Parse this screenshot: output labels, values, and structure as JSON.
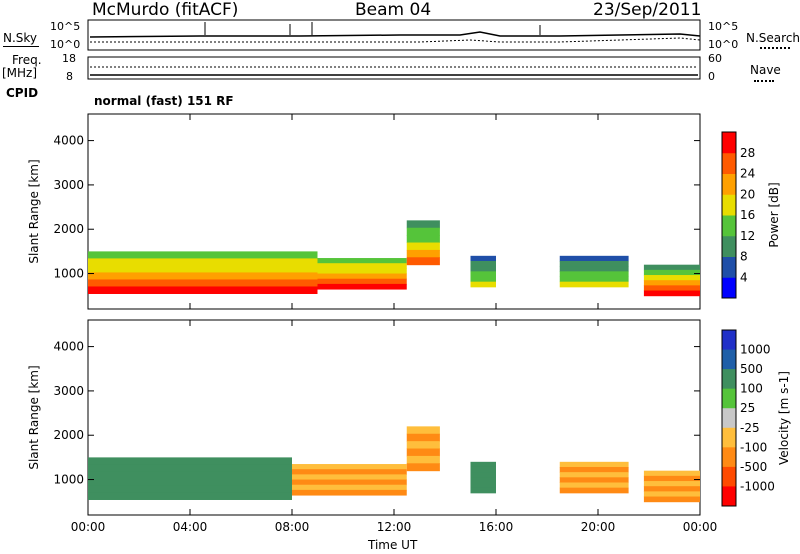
{
  "header": {
    "station": "McMurdo (fitACF)",
    "beam": "Beam 04",
    "date": "23/Sep/2011"
  },
  "summary_panels": {
    "nsky_label": "N.Sky",
    "noise_ticks_left": [
      "10^5",
      "10^0"
    ],
    "noise_ticks_right": [
      "10^5",
      "10^0"
    ],
    "nsearch_label": "N.Search",
    "freq_label": "Freq.",
    "freq_unit": "[MHz]",
    "freq_ticks": [
      "18",
      "8"
    ],
    "nave_ticks": [
      "60",
      "0"
    ],
    "nave_label": "Nave",
    "cpid_label": "CPID",
    "cpid_text": "normal (fast) 151 RF"
  },
  "colors": {
    "power_scale": [
      "#0000ff",
      "#1f4fa8",
      "#3f8f5f",
      "#55c43a",
      "#e8dd00",
      "#ffa000",
      "#ff5a00",
      "#ff0000"
    ],
    "velocity_scale": [
      "#2030c8",
      "#1f5fa8",
      "#3f8f5f",
      "#55c43a",
      "#c8c8c8",
      "#ffbe3c",
      "#ff8a14",
      "#ff4a00",
      "#ff0000"
    ]
  },
  "chart_data": [
    {
      "type": "heatmap",
      "title": "Power",
      "xlabel": "Time UT",
      "ylabel": "Slant Range [km]",
      "xlim": [
        0,
        24
      ],
      "ylim": [
        200,
        4600
      ],
      "x_tick_labels": [
        "00:00",
        "04:00",
        "08:00",
        "12:00",
        "16:00",
        "20:00",
        "00:00"
      ],
      "y_tick_labels": [
        "1000",
        "2000",
        "3000",
        "4000"
      ],
      "colorbar": {
        "label": "Power [dB]",
        "range": [
          0,
          32
        ],
        "tick_labels": [
          "4",
          "8",
          "12",
          "16",
          "20",
          "24",
          "28"
        ]
      },
      "echo_regions": [
        {
          "time_start": 0.0,
          "time_end": 9.0,
          "range_low": 550,
          "range_high": 1500,
          "peak_db": 30
        },
        {
          "time_start": 9.0,
          "time_end": 12.5,
          "range_low": 650,
          "range_high": 1350,
          "peak_db": 30
        },
        {
          "time_start": 12.5,
          "time_end": 13.8,
          "range_low": 1200,
          "range_high": 2200,
          "peak_db": 24
        },
        {
          "time_start": 15.0,
          "time_end": 16.0,
          "range_low": 700,
          "range_high": 1400,
          "peak_db": 16
        },
        {
          "time_start": 18.5,
          "time_end": 21.2,
          "range_low": 700,
          "range_high": 1400,
          "peak_db": 16
        },
        {
          "time_start": 21.8,
          "time_end": 24.0,
          "range_low": 500,
          "range_high": 1200,
          "peak_db": 28
        }
      ]
    },
    {
      "type": "heatmap",
      "title": "Velocity",
      "xlabel": "Time UT",
      "ylabel": "Slant Range [km]",
      "xlim": [
        0,
        24
      ],
      "ylim": [
        200,
        4600
      ],
      "x_tick_labels": [
        "00:00",
        "04:00",
        "08:00",
        "12:00",
        "16:00",
        "20:00",
        "00:00"
      ],
      "y_tick_labels": [
        "1000",
        "2000",
        "3000",
        "4000"
      ],
      "colorbar": {
        "label": "Velocity [m s-1]",
        "tick_labels": [
          "1000",
          "500",
          "100",
          "25",
          "-25",
          "-100",
          "-500",
          "-1000"
        ]
      },
      "echo_regions": [
        {
          "time_start": 0.0,
          "time_end": 8.0,
          "range_low": 550,
          "range_high": 1500,
          "velocity": 100
        },
        {
          "time_start": 8.0,
          "time_end": 12.5,
          "range_low": 650,
          "range_high": 1350,
          "velocity": -100
        },
        {
          "time_start": 12.5,
          "time_end": 13.8,
          "range_low": 1200,
          "range_high": 2200,
          "velocity": -100
        },
        {
          "time_start": 15.0,
          "time_end": 16.0,
          "range_low": 700,
          "range_high": 1400,
          "velocity": 100
        },
        {
          "time_start": 18.5,
          "time_end": 21.2,
          "range_low": 700,
          "range_high": 1400,
          "velocity": -100
        },
        {
          "time_start": 21.8,
          "time_end": 24.0,
          "range_low": 500,
          "range_high": 1200,
          "velocity": -100
        }
      ]
    }
  ]
}
